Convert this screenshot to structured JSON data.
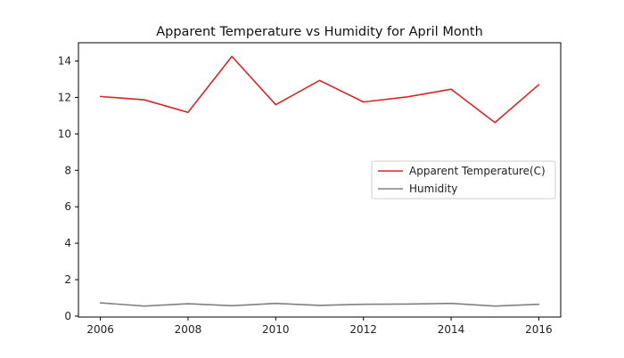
{
  "chart_data": {
    "type": "line",
    "title": "Apparent Temperature vs Humidity for April Month",
    "xlabel": "",
    "ylabel": "",
    "x": [
      2006,
      2007,
      2008,
      2009,
      2010,
      2011,
      2012,
      2013,
      2014,
      2015,
      2016
    ],
    "xlim": [
      2005.5,
      2016.5
    ],
    "ylim": [
      -0.05,
      15.0
    ],
    "xticks": [
      2006,
      2008,
      2010,
      2012,
      2014,
      2016
    ],
    "yticks": [
      0,
      2,
      4,
      6,
      8,
      10,
      12,
      14
    ],
    "grid": false,
    "legend_position": "center-right",
    "series": [
      {
        "name": "Apparent Temperature(C)",
        "color": "#d62728",
        "values": [
          12.05,
          11.87,
          11.18,
          14.25,
          11.6,
          12.93,
          11.75,
          12.03,
          12.45,
          10.62,
          12.7
        ]
      },
      {
        "name": "Humidity",
        "color": "#808080",
        "values": [
          0.73,
          0.55,
          0.68,
          0.57,
          0.7,
          0.59,
          0.65,
          0.66,
          0.7,
          0.55,
          0.65
        ]
      }
    ]
  }
}
